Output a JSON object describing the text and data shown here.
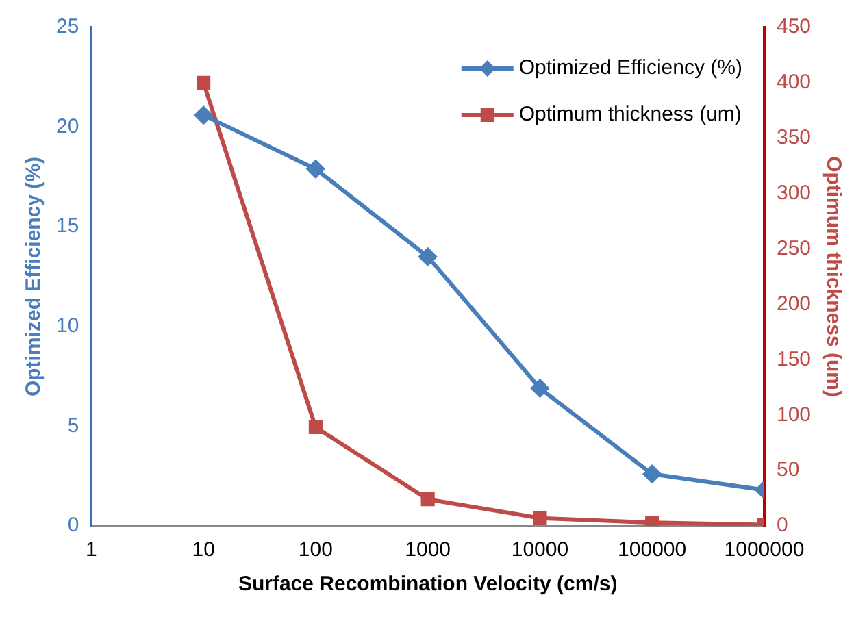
{
  "chart_data": {
    "type": "line",
    "xlabel": "Surface Recombination Velocity (cm/s)",
    "ylabel": "Optimized Efficiency (%)",
    "y2label": "Optimum thickness (um)",
    "x": [
      10,
      100,
      1000,
      10000,
      100000,
      1000000
    ],
    "series": [
      {
        "name": "Optimized Efficiency (%)",
        "color": "#4a7ebb",
        "marker": "diamond",
        "values": [
          20.6,
          17.9,
          13.5,
          6.9,
          2.6,
          1.8
        ]
      },
      {
        "name": "Optimum thickness (um)",
        "color": "#be4b48",
        "marker": "square",
        "axis": "y2",
        "values": [
          400,
          89,
          24,
          7,
          3,
          1
        ]
      }
    ],
    "log": "x",
    "xlim": [
      1,
      1000000
    ],
    "xticks": [
      1,
      10,
      100,
      1000,
      10000,
      100000,
      1000000
    ],
    "ylim": [
      0,
      25
    ],
    "yticks": [
      0,
      5,
      10,
      15,
      20,
      25
    ],
    "y2lim": [
      0,
      450
    ],
    "y2ticks": [
      0,
      50,
      100,
      150,
      200,
      250,
      300,
      350,
      400,
      450
    ],
    "grid": false,
    "legend": "top right",
    "line_style": "solid"
  }
}
